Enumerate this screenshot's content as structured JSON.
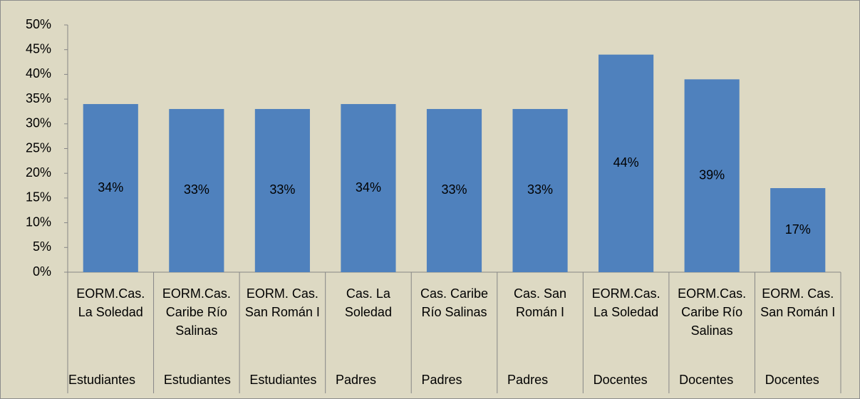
{
  "chart_data": {
    "type": "bar",
    "categories": [
      "EORM.Cas. La Soledad",
      "EORM.Cas. Caribe Río Salinas",
      "EORM. Cas. San Román I",
      "Cas. La Soledad",
      "Cas. Caribe Río Salinas",
      "Cas. San Román I",
      "EORM.Cas. La Soledad",
      "EORM.Cas. Caribe Río Salinas",
      "EORM. Cas. San Román I"
    ],
    "groups": [
      "Estudiantes",
      "Estudiantes",
      "Estudiantes",
      "Padres",
      "Padres",
      "Padres",
      "Docentes",
      "Docentes",
      "Docentes"
    ],
    "values": [
      34,
      33,
      33,
      34,
      33,
      33,
      44,
      39,
      17
    ],
    "value_labels": [
      "34%",
      "33%",
      "33%",
      "34%",
      "33%",
      "33%",
      "44%",
      "39%",
      "17%"
    ],
    "color": "#4f81bd",
    "ylim": [
      0,
      50
    ],
    "yticks": [
      {
        "value": 0,
        "label": "0%"
      },
      {
        "value": 5,
        "label": "5%"
      },
      {
        "value": 10,
        "label": "10%"
      },
      {
        "value": 15,
        "label": "15%"
      },
      {
        "value": 20,
        "label": "20%"
      },
      {
        "value": 25,
        "label": "25%"
      },
      {
        "value": 30,
        "label": "30%"
      },
      {
        "value": 35,
        "label": "35%"
      },
      {
        "value": 40,
        "label": "40%"
      },
      {
        "value": 45,
        "label": "45%"
      },
      {
        "value": 50,
        "label": "50%"
      }
    ],
    "grid": false
  }
}
